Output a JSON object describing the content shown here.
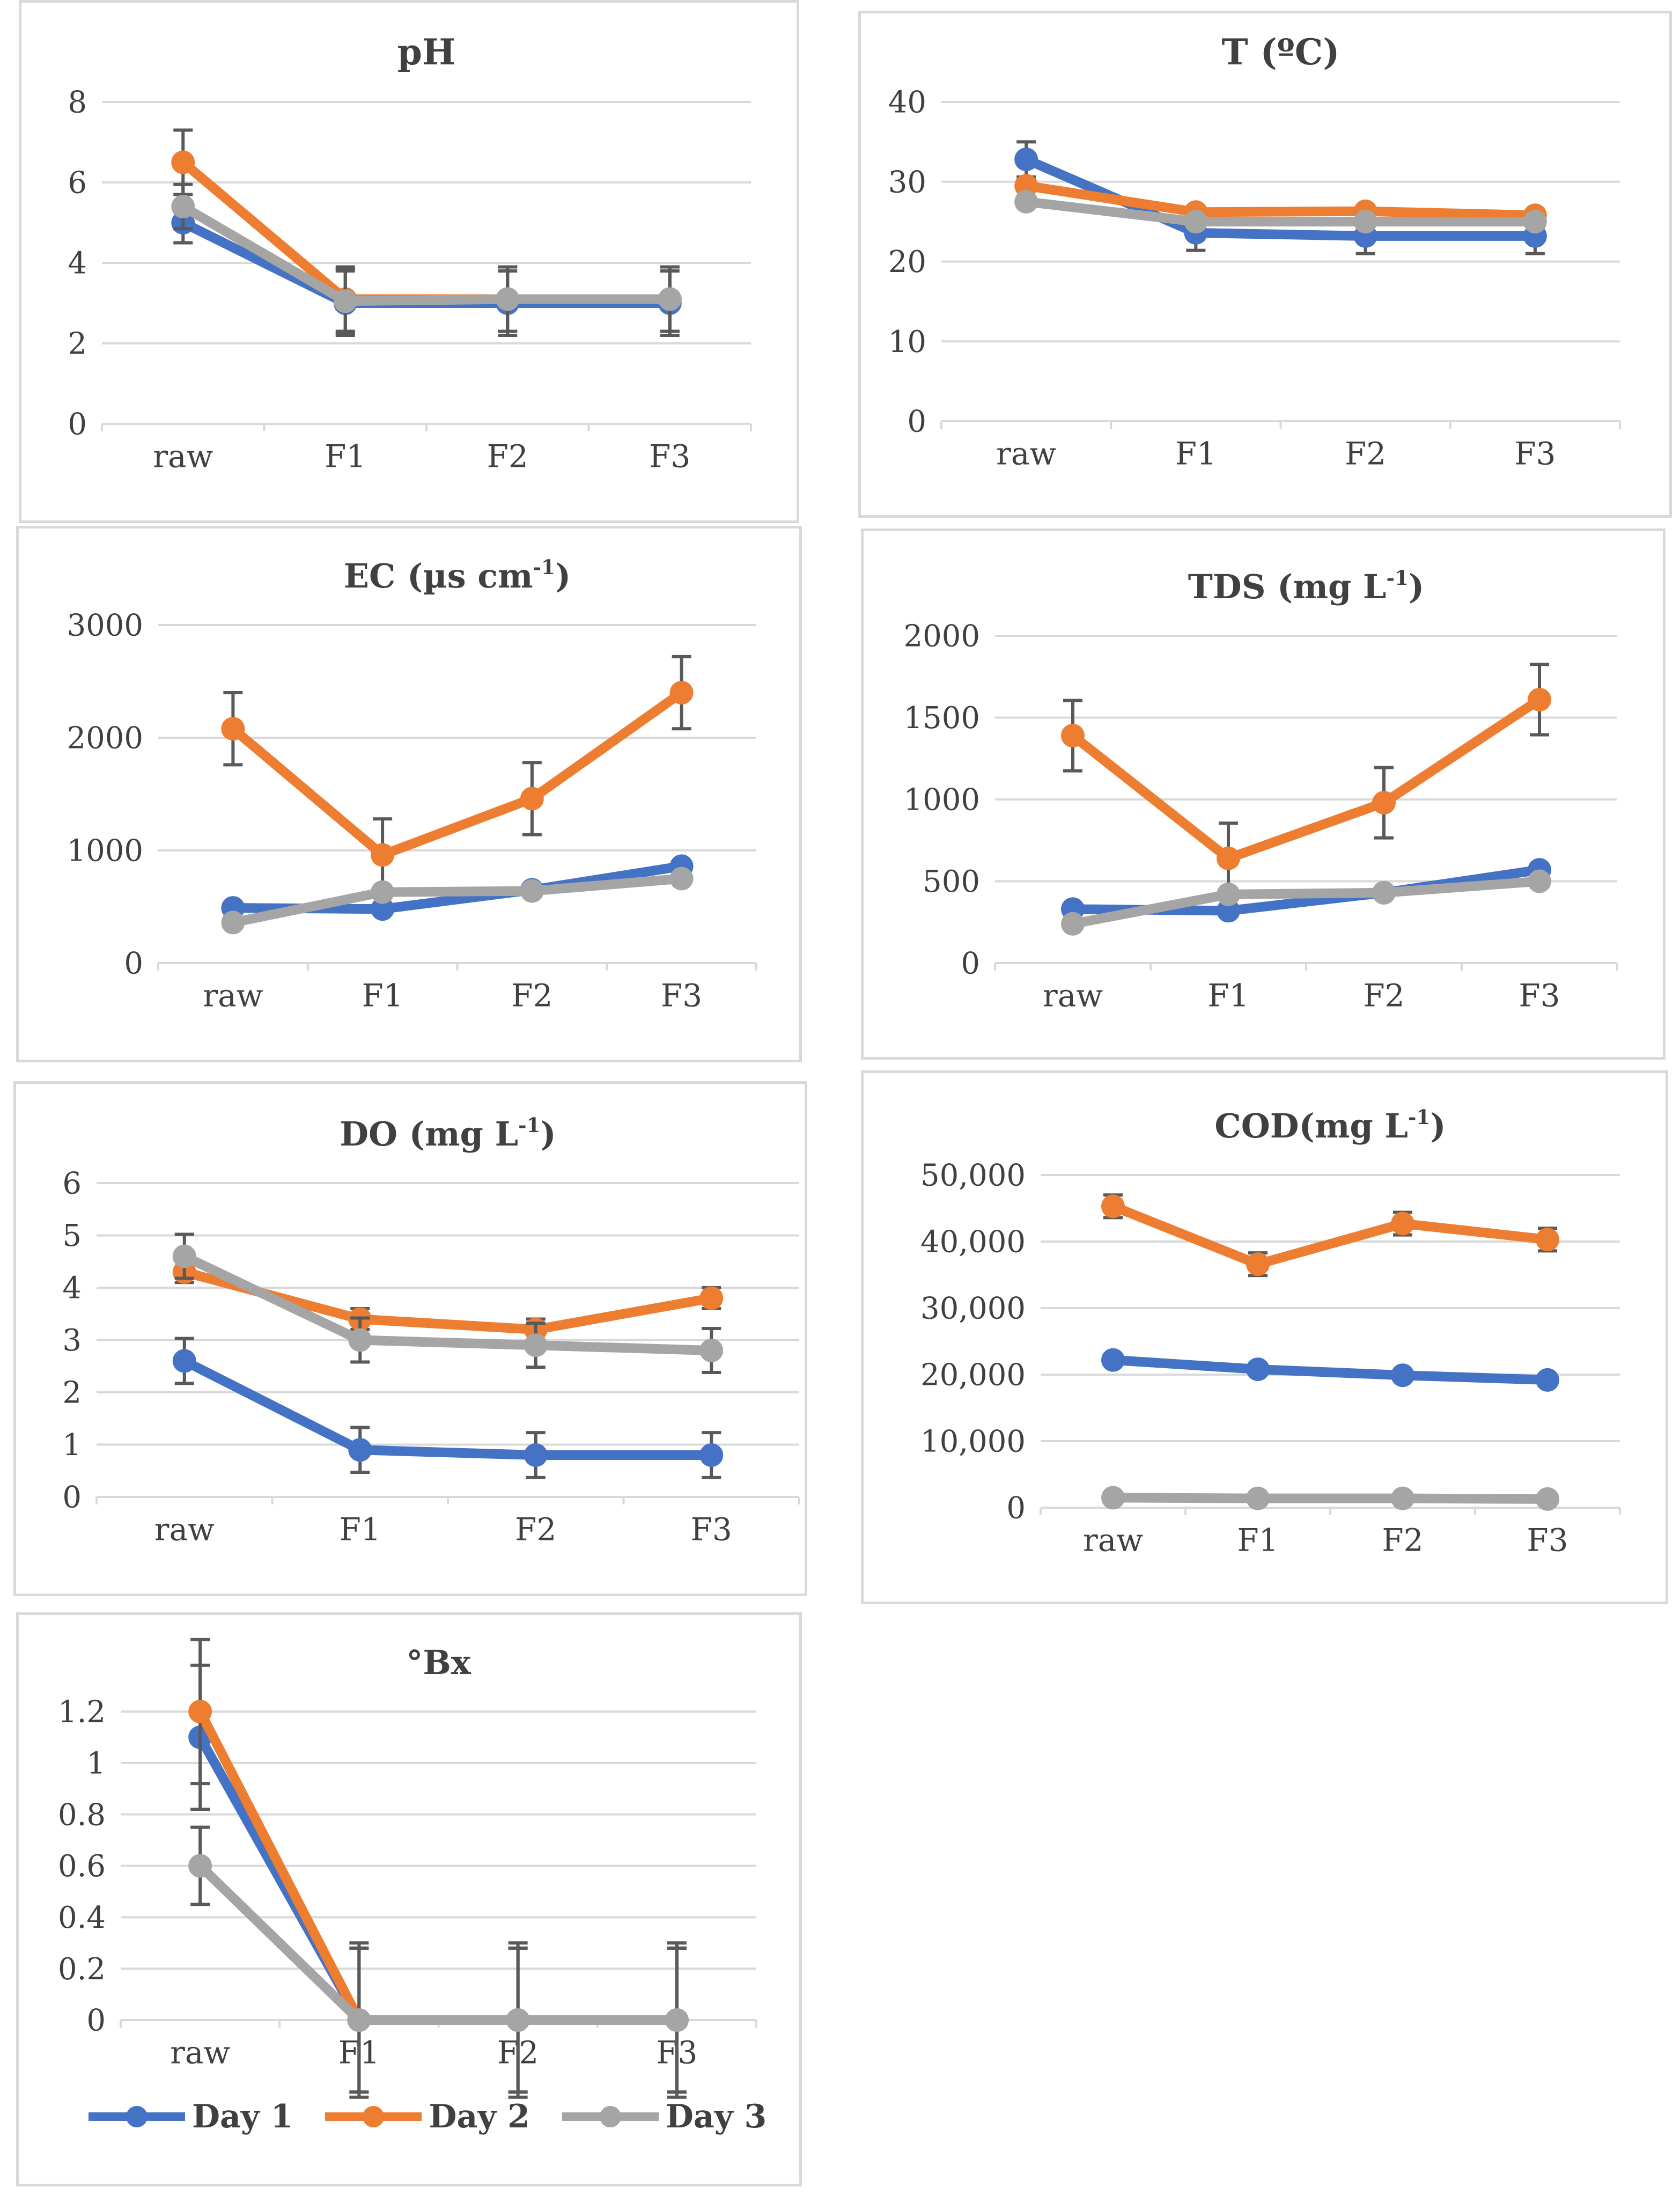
{
  "colors": {
    "Day 1": "#4472c4",
    "Day 2": "#ed7d31",
    "Day 3": "#a5a5a5"
  },
  "legend": {
    "items": [
      "Day 1",
      "Day 2",
      "Day 3"
    ],
    "placement": "bottom"
  },
  "chart_data": [
    {
      "type": "line",
      "title": "pH",
      "title_sup": "",
      "categories": [
        "raw",
        "F1",
        "F2",
        "F3"
      ],
      "ylim": [
        0,
        8
      ],
      "yticks": [
        0,
        2,
        4,
        6,
        8
      ],
      "ytick_labels": [
        "0",
        "2",
        "4",
        "6",
        "8"
      ],
      "grid": true,
      "series": [
        {
          "name": "Day 1",
          "values": [
            5.0,
            3.0,
            3.0,
            3.0
          ],
          "errors": [
            0.5,
            0.8,
            0.8,
            0.8
          ]
        },
        {
          "name": "Day 2",
          "values": [
            6.5,
            3.1,
            3.1,
            3.1
          ],
          "errors": [
            0.8,
            0.8,
            0.8,
            0.8
          ]
        },
        {
          "name": "Day 3",
          "values": [
            5.4,
            3.05,
            3.1,
            3.1
          ],
          "errors": [
            0.55,
            0.8,
            0.8,
            0.8
          ]
        }
      ]
    },
    {
      "type": "line",
      "title": "T (ºC)",
      "title_sup": "",
      "categories": [
        "raw",
        "F1",
        "F2",
        "F3"
      ],
      "ylim": [
        0,
        40
      ],
      "yticks": [
        0,
        10,
        20,
        30,
        40
      ],
      "ytick_labels": [
        "0",
        "10",
        "20",
        "30",
        "40"
      ],
      "grid": true,
      "series": [
        {
          "name": "Day 1",
          "values": [
            32.8,
            23.6,
            23.2,
            23.2
          ],
          "errors": [
            2.2,
            2.2,
            2.2,
            2.2
          ]
        },
        {
          "name": "Day 2",
          "values": [
            29.5,
            26.2,
            26.3,
            25.8
          ],
          "errors": [
            0,
            0,
            0,
            0
          ]
        },
        {
          "name": "Day 3",
          "values": [
            27.5,
            25.0,
            25.0,
            25.0
          ],
          "errors": [
            0,
            0,
            0,
            0
          ]
        }
      ]
    },
    {
      "type": "line",
      "title": "EC (µs cm",
      "title_sup": "-1",
      "title_tail": ")",
      "categories": [
        "raw",
        "F1",
        "F2",
        "F3"
      ],
      "ylim": [
        0,
        3000
      ],
      "yticks": [
        0,
        1000,
        2000,
        3000
      ],
      "ytick_labels": [
        "0",
        "1000",
        "2000",
        "3000"
      ],
      "grid": true,
      "series": [
        {
          "name": "Day 1",
          "values": [
            490,
            480,
            650,
            860
          ],
          "errors": [
            0,
            0,
            0,
            0
          ]
        },
        {
          "name": "Day 2",
          "values": [
            2080,
            960,
            1460,
            2400
          ],
          "errors": [
            320,
            320,
            320,
            320
          ]
        },
        {
          "name": "Day 3",
          "values": [
            360,
            630,
            640,
            750
          ],
          "errors": [
            0,
            0,
            0,
            0
          ]
        }
      ]
    },
    {
      "type": "line",
      "title": "TDS (mg L",
      "title_sup": "-1",
      "title_tail": ")",
      "categories": [
        "raw",
        "F1",
        "F2",
        "F3"
      ],
      "ylim": [
        0,
        2000
      ],
      "yticks": [
        0,
        500,
        1000,
        1500,
        2000
      ],
      "ytick_labels": [
        "0",
        "500",
        "1000",
        "1500",
        "2000"
      ],
      "grid": true,
      "series": [
        {
          "name": "Day 1",
          "values": [
            330,
            320,
            430,
            570
          ],
          "errors": [
            0,
            0,
            0,
            0
          ]
        },
        {
          "name": "Day 2",
          "values": [
            1390,
            640,
            980,
            1610
          ],
          "errors": [
            215,
            215,
            215,
            215
          ]
        },
        {
          "name": "Day 3",
          "values": [
            240,
            420,
            430,
            500
          ],
          "errors": [
            0,
            0,
            0,
            0
          ]
        }
      ]
    },
    {
      "type": "line",
      "title": "DO (mg L",
      "title_sup": "-1",
      "title_tail": ")",
      "categories": [
        "raw",
        "F1",
        "F2",
        "F3"
      ],
      "ylim": [
        0,
        6
      ],
      "yticks": [
        0,
        1,
        2,
        3,
        4,
        5,
        6
      ],
      "ytick_labels": [
        "0",
        "1",
        "2",
        "3",
        "4",
        "5",
        "6"
      ],
      "grid": true,
      "series": [
        {
          "name": "Day 1",
          "values": [
            2.6,
            0.9,
            0.8,
            0.8
          ],
          "errors": [
            0.43,
            0.43,
            0.43,
            0.43
          ]
        },
        {
          "name": "Day 2",
          "values": [
            4.3,
            3.4,
            3.2,
            3.8
          ],
          "errors": [
            0.2,
            0.2,
            0.2,
            0.2
          ]
        },
        {
          "name": "Day 3",
          "values": [
            4.6,
            3.0,
            2.9,
            2.8
          ],
          "errors": [
            0.42,
            0.42,
            0.42,
            0.42
          ]
        }
      ]
    },
    {
      "type": "line",
      "title": "COD(mg L",
      "title_sup": "-1",
      "title_tail": ")",
      "categories": [
        "raw",
        "F1",
        "F2",
        "F3"
      ],
      "ylim": [
        0,
        50000
      ],
      "yticks": [
        0,
        10000,
        20000,
        30000,
        40000,
        50000
      ],
      "ytick_labels": [
        "0",
        "10,000",
        "20,000",
        "30,000",
        "40,000",
        "50,000"
      ],
      "grid": true,
      "series": [
        {
          "name": "Day 1",
          "values": [
            22200,
            20800,
            19900,
            19200
          ],
          "errors": [
            0,
            0,
            0,
            0
          ]
        },
        {
          "name": "Day 2",
          "values": [
            45300,
            36600,
            42700,
            40300
          ],
          "errors": [
            1700,
            1700,
            1700,
            1700
          ]
        },
        {
          "name": "Day 3",
          "values": [
            1500,
            1400,
            1400,
            1300
          ],
          "errors": [
            0,
            0,
            0,
            0
          ]
        }
      ]
    },
    {
      "type": "line",
      "title": "°Bx",
      "title_sup": "",
      "categories": [
        "raw",
        "F1",
        "F2",
        "F3"
      ],
      "ylim": [
        0,
        1.2
      ],
      "yticks": [
        0,
        0.2,
        0.4,
        0.6,
        0.8,
        1.0,
        1.2
      ],
      "ytick_labels": [
        "0",
        "0.2",
        "0.4",
        "0.6",
        "0.8",
        "1",
        "1.2"
      ],
      "grid": true,
      "series": [
        {
          "name": "Day 1",
          "values": [
            1.1,
            0,
            0,
            0
          ],
          "errors": [
            0.28,
            0.28,
            0.28,
            0.28
          ]
        },
        {
          "name": "Day 2",
          "values": [
            1.2,
            0,
            0,
            0
          ],
          "errors": [
            0.28,
            0.28,
            0.28,
            0.28
          ]
        },
        {
          "name": "Day 3",
          "values": [
            0.6,
            0,
            0,
            0
          ],
          "errors": [
            0.15,
            0.3,
            0.3,
            0.3
          ]
        }
      ]
    }
  ]
}
